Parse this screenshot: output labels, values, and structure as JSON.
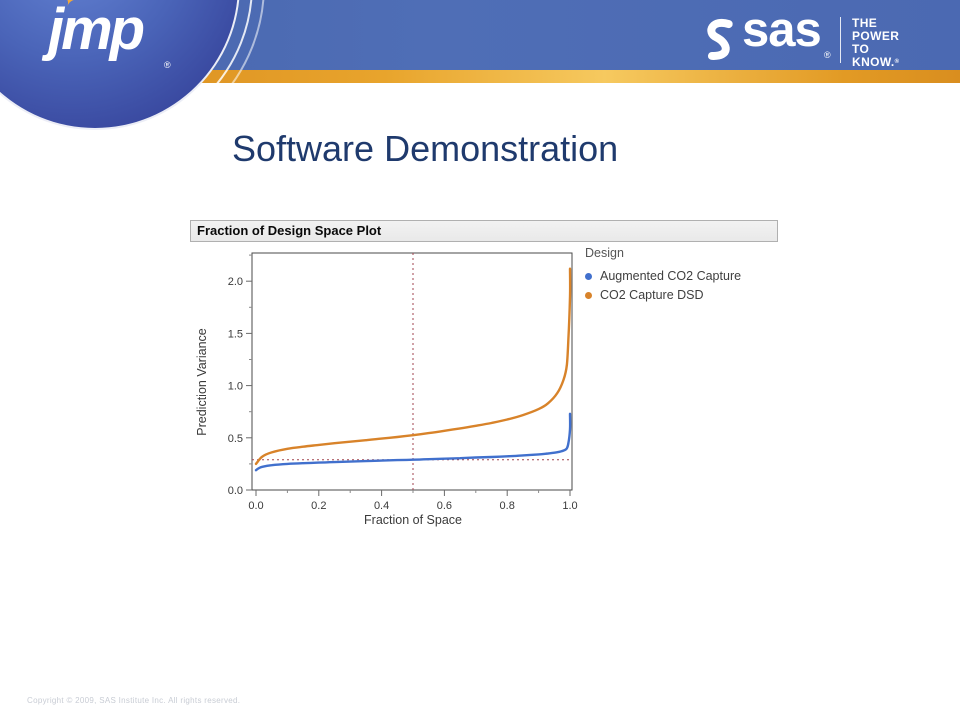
{
  "header": {
    "jmp_logo_text": "jmp",
    "jmp_reg_mark": "®",
    "sas_logo_text": "sas",
    "sas_reg_mark": "®",
    "tagline": [
      "THE",
      "POWER",
      "TO KNOW."
    ],
    "tagline_reg": "®",
    "band_blue_color": "#4b69b2",
    "band_orange_color": "#e8a42c"
  },
  "slide": {
    "title": "Software Demonstration",
    "title_color": "#1f3a6d",
    "footer": "Copyright © 2009, SAS Institute Inc. All rights reserved."
  },
  "panel": {
    "title": "Fraction of Design Space Plot"
  },
  "chart_data": {
    "type": "line",
    "title": "Fraction of Design Space Plot",
    "xlabel": "Fraction of Space",
    "ylabel": "Prediction Variance",
    "xlim": [
      0,
      1
    ],
    "ylim": [
      0,
      2.27
    ],
    "grid": false,
    "legend_title": "Design",
    "legend_position": "right-top",
    "x_ticks": [
      {
        "v": 0.0,
        "label": "0.0"
      },
      {
        "v": 0.2,
        "label": "0.2"
      },
      {
        "v": 0.4,
        "label": "0.4"
      },
      {
        "v": 0.6,
        "label": "0.6"
      },
      {
        "v": 0.8,
        "label": "0.8"
      },
      {
        "v": 1.0,
        "label": "1.0"
      }
    ],
    "x_minor_ticks": [
      0.1,
      0.3,
      0.5,
      0.7,
      0.9
    ],
    "y_ticks": [
      {
        "v": 0.0,
        "label": "0.0"
      },
      {
        "v": 0.5,
        "label": "0.5"
      },
      {
        "v": 1.0,
        "label": "1.0"
      },
      {
        "v": 1.5,
        "label": "1.5"
      },
      {
        "v": 2.0,
        "label": "2.0"
      }
    ],
    "y_minor_ticks": [
      0.25,
      0.75,
      1.25,
      1.75,
      2.25
    ],
    "reference_lines": [
      {
        "orientation": "vertical",
        "value": 0.5,
        "color": "#a2434f",
        "style": "dotted"
      },
      {
        "orientation": "horizontal",
        "value": 0.29,
        "color": "#a2434f",
        "style": "dotted"
      }
    ],
    "series": [
      {
        "name": "Augmented CO2 Capture",
        "color": "#4170cd",
        "x": [
          0,
          0.01,
          0.02,
          0.05,
          0.1,
          0.15,
          0.2,
          0.25,
          0.3,
          0.35,
          0.4,
          0.45,
          0.5,
          0.55,
          0.6,
          0.65,
          0.7,
          0.75,
          0.8,
          0.85,
          0.9,
          0.93,
          0.96,
          0.98,
          0.99,
          0.995,
          1.0,
          1.0
        ],
        "y": [
          0.19,
          0.21,
          0.222,
          0.238,
          0.25,
          0.257,
          0.262,
          0.267,
          0.272,
          0.277,
          0.282,
          0.286,
          0.29,
          0.295,
          0.3,
          0.305,
          0.311,
          0.316,
          0.323,
          0.331,
          0.341,
          0.35,
          0.362,
          0.378,
          0.4,
          0.45,
          0.58,
          0.73
        ]
      },
      {
        "name": "CO2 Capture DSD",
        "color": "#d8832a",
        "x": [
          0,
          0.005,
          0.02,
          0.05,
          0.1,
          0.15,
          0.2,
          0.25,
          0.3,
          0.35,
          0.4,
          0.45,
          0.5,
          0.55,
          0.6,
          0.65,
          0.7,
          0.75,
          0.8,
          0.85,
          0.9,
          0.93,
          0.96,
          0.98,
          0.99,
          0.995,
          1.0,
          1.0
        ],
        "y": [
          0.25,
          0.27,
          0.32,
          0.36,
          0.395,
          0.415,
          0.432,
          0.448,
          0.463,
          0.477,
          0.492,
          0.508,
          0.525,
          0.545,
          0.567,
          0.59,
          0.615,
          0.642,
          0.675,
          0.717,
          0.775,
          0.83,
          0.93,
          1.06,
          1.2,
          1.45,
          1.85,
          2.12
        ]
      }
    ]
  }
}
